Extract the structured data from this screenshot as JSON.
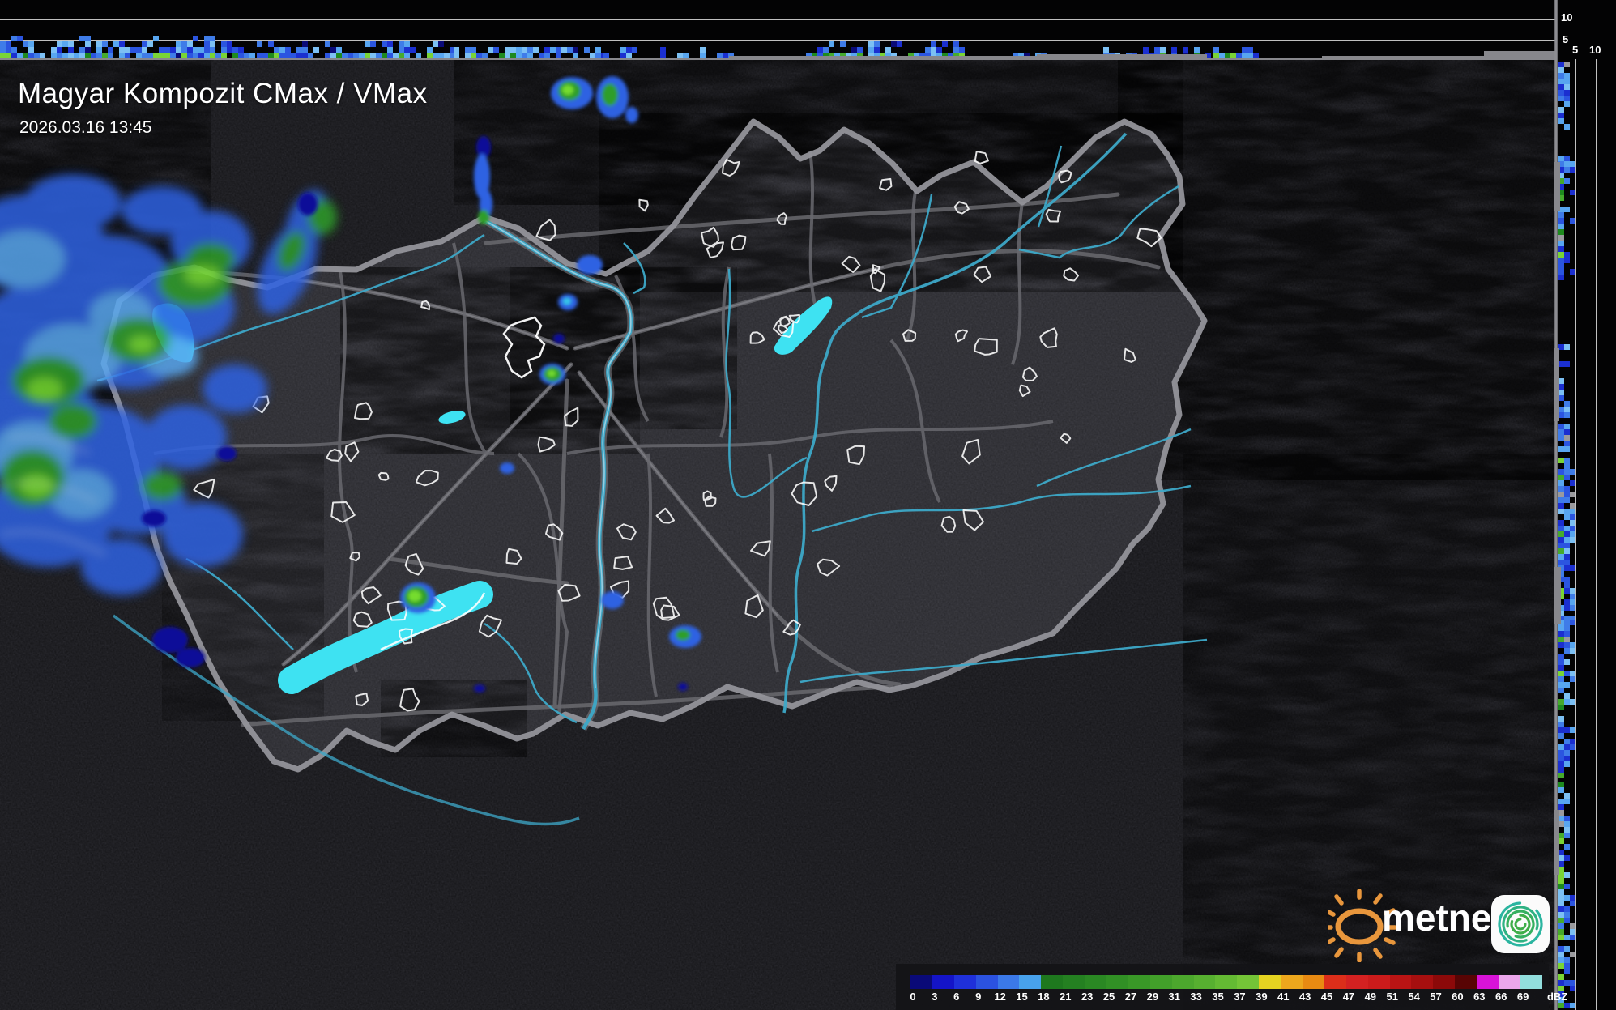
{
  "header": {
    "title": "Magyar Kompozit CMax / VMax",
    "timestamp": "2026.03.16 13:45"
  },
  "profile_axes": {
    "top_labels": [
      "10",
      "5"
    ],
    "right_labels": [
      "5",
      "10"
    ]
  },
  "colorbar": {
    "unit": "dBZ",
    "ticks": [
      "0",
      "3",
      "6",
      "9",
      "12",
      "15",
      "18",
      "21",
      "23",
      "25",
      "27",
      "29",
      "31",
      "33",
      "35",
      "37",
      "39",
      "41",
      "43",
      "45",
      "47",
      "49",
      "51",
      "54",
      "57",
      "60",
      "63",
      "66",
      "69"
    ],
    "colors": [
      "#0a0a78",
      "#1414c8",
      "#1f30da",
      "#2b52e0",
      "#3b79e8",
      "#48a2ec",
      "#1e781e",
      "#248021",
      "#2a8823",
      "#319025",
      "#399827",
      "#42a02a",
      "#4ca82d",
      "#57b030",
      "#64ba33",
      "#74c437",
      "#e5d321",
      "#eda71d",
      "#e88a12",
      "#dc2e1a",
      "#d42121",
      "#cb1b1b",
      "#b91414",
      "#a60f0f",
      "#8c0909",
      "#580404",
      "#d813d8",
      "#eba6eb",
      "#92dedd"
    ]
  },
  "branding": {
    "logo_text": "metnet"
  },
  "palette": {
    "lake_cyan": "#3ee2f2",
    "river_teal": "#3da8c8",
    "border_gray": "#9a9aa0",
    "echo_blue": "#2e62e2",
    "echo_light_blue": "#58a6ee",
    "echo_green": "#2f9e2c",
    "echo_bright_green": "#74dc2e",
    "echo_navy": "#0e1098",
    "sun_orange": "#e8963c",
    "spiral_teal": "#2bb5a0",
    "spiral_green": "#3fae49"
  }
}
